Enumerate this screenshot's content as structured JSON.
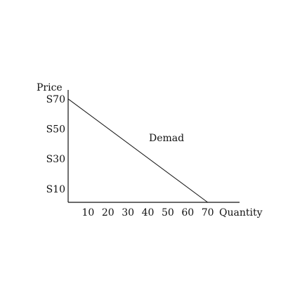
{
  "chart_data": {
    "type": "line",
    "ylabel": "Price",
    "xlabel": "Quantity",
    "x_ticks": [
      10,
      20,
      30,
      40,
      50,
      60,
      70
    ],
    "y_tick_labels": [
      "S70",
      "S50",
      "S30",
      "S10"
    ],
    "y_tick_values": [
      70,
      50,
      30,
      10
    ],
    "xlim": [
      0,
      86
    ],
    "ylim": [
      1,
      76
    ],
    "grid": false,
    "series": [
      {
        "name": "Demad",
        "x": [
          0,
          70
        ],
        "y": [
          70,
          1
        ]
      }
    ]
  }
}
